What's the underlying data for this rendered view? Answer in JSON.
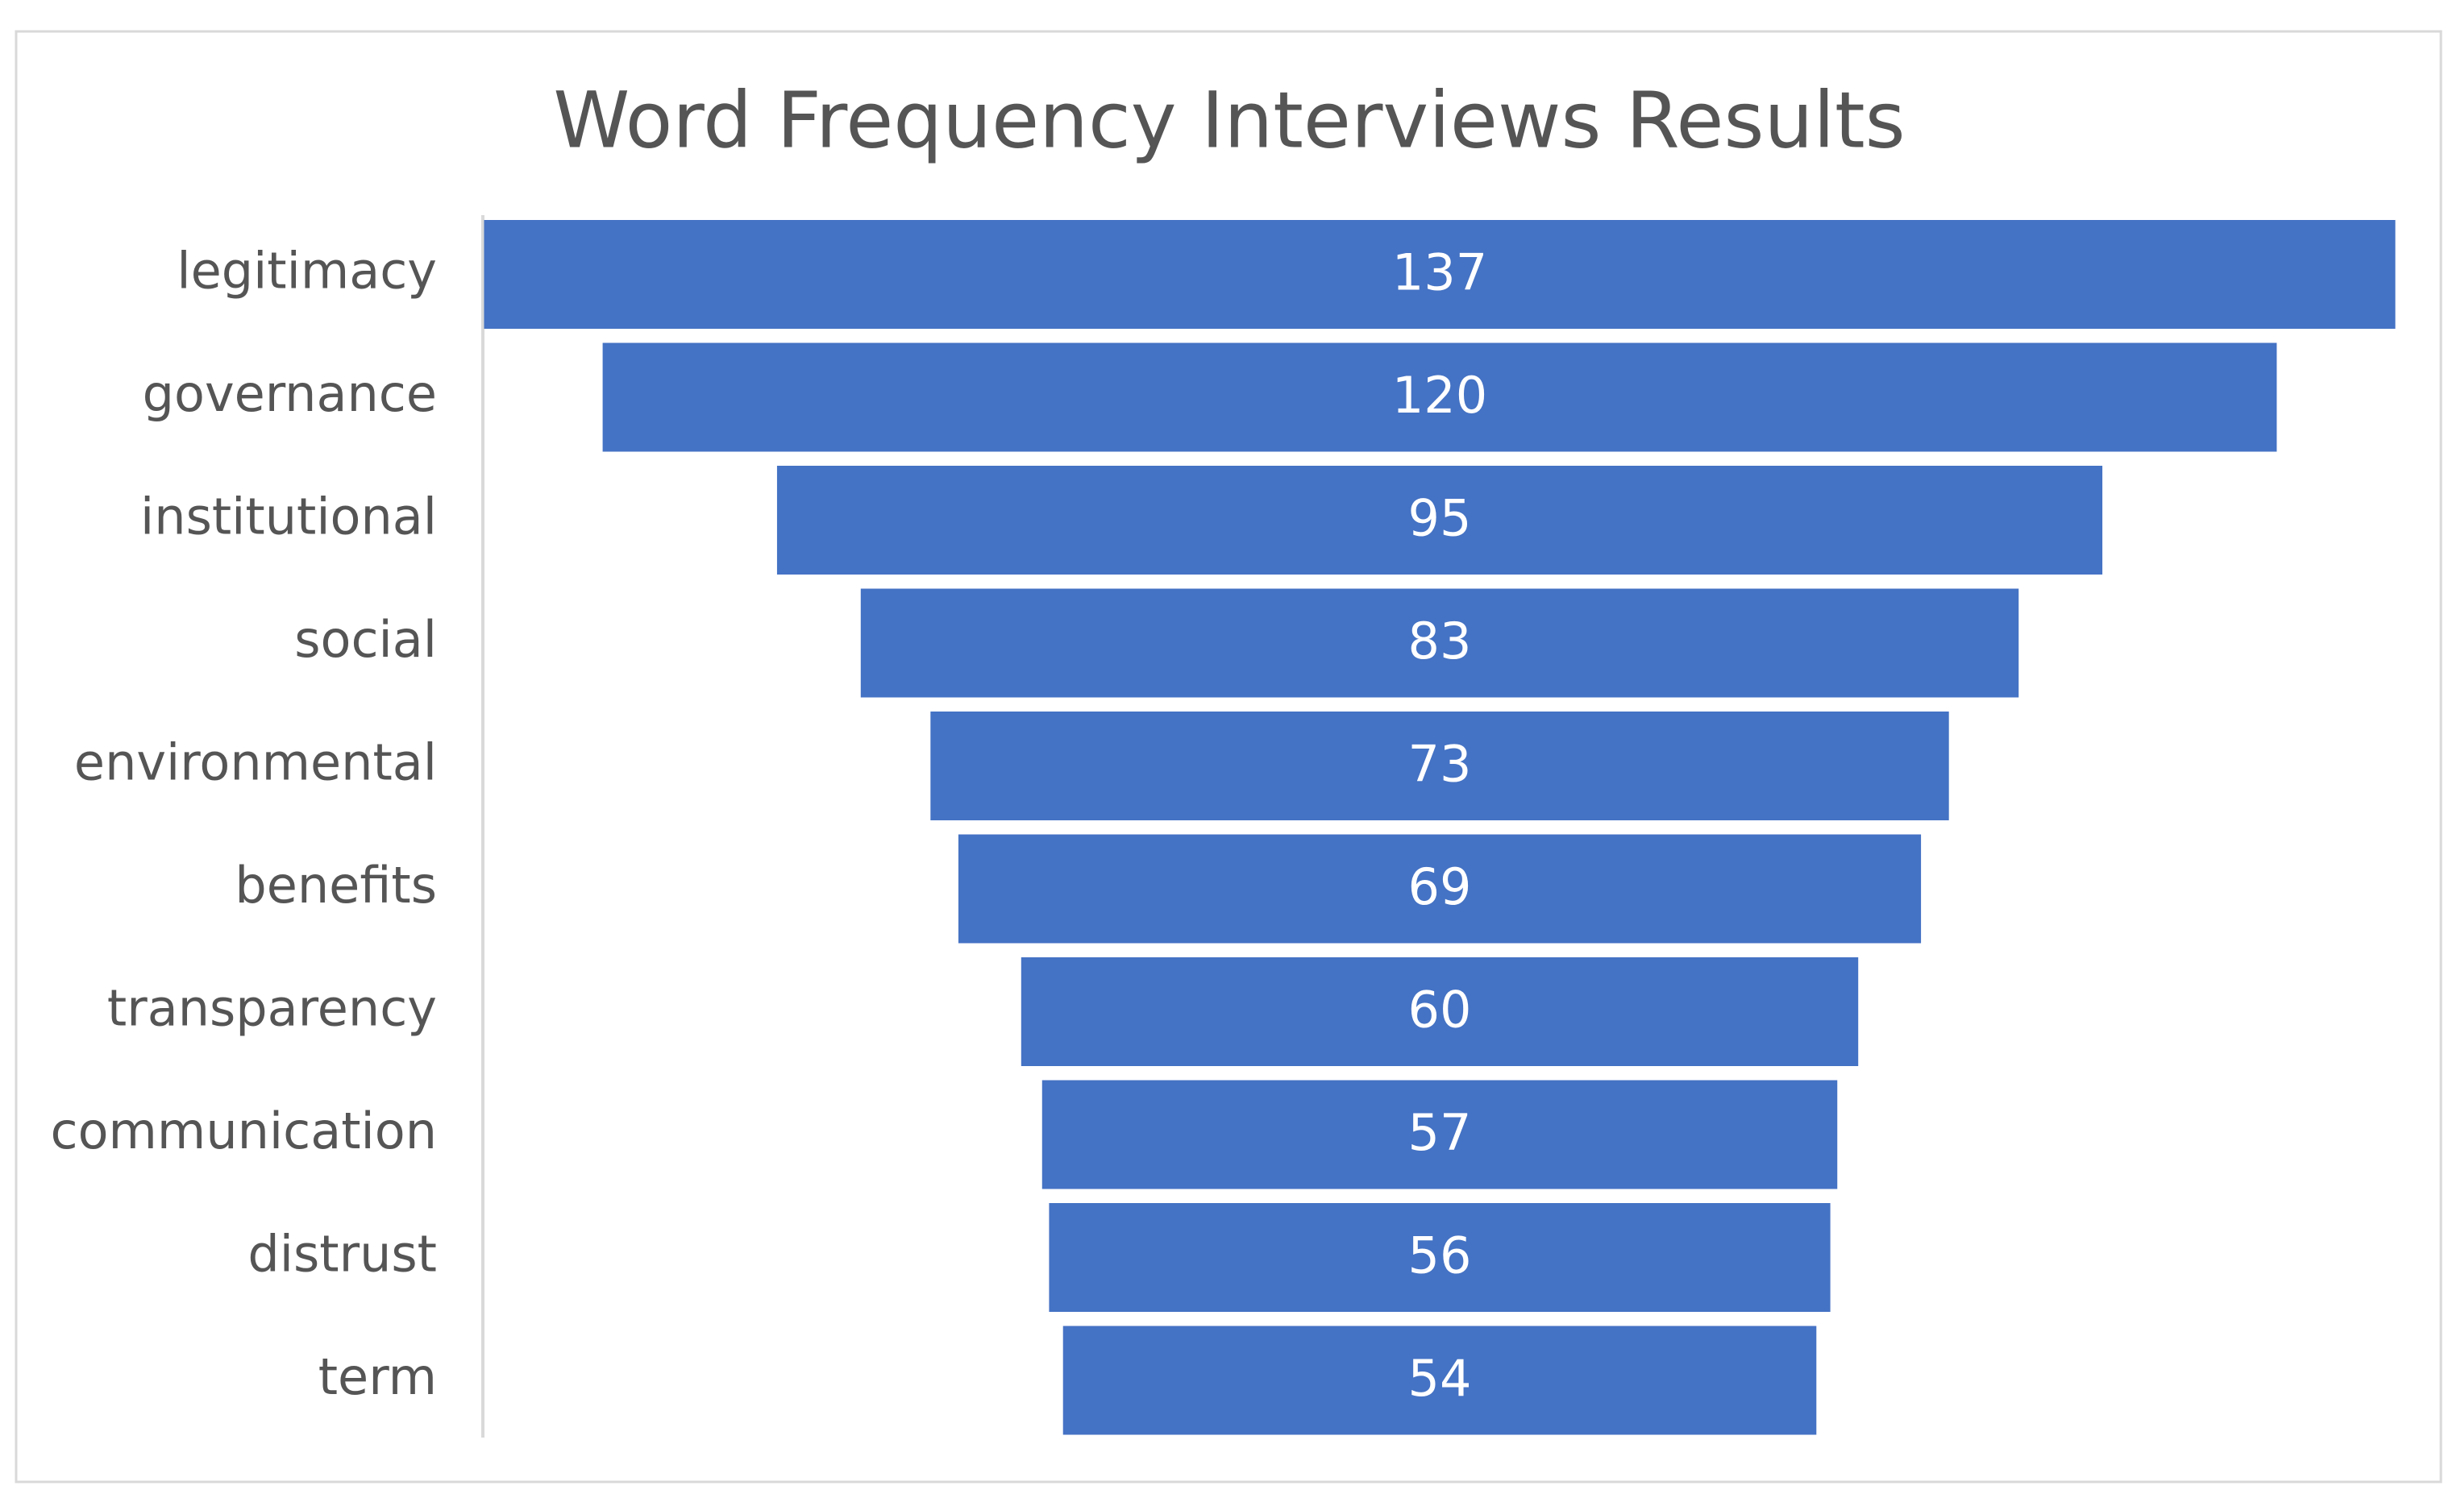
{
  "chart_data": {
    "type": "funnel",
    "title": "Word Frequency Interviews Results",
    "categories": [
      "legitimacy",
      "governance",
      "institutional",
      "social",
      "environmental",
      "benefits",
      "transparency",
      "communication",
      "distrust",
      "term"
    ],
    "values": [
      137,
      120,
      95,
      83,
      73,
      69,
      60,
      57,
      56,
      54
    ],
    "color": "#4472c4"
  }
}
